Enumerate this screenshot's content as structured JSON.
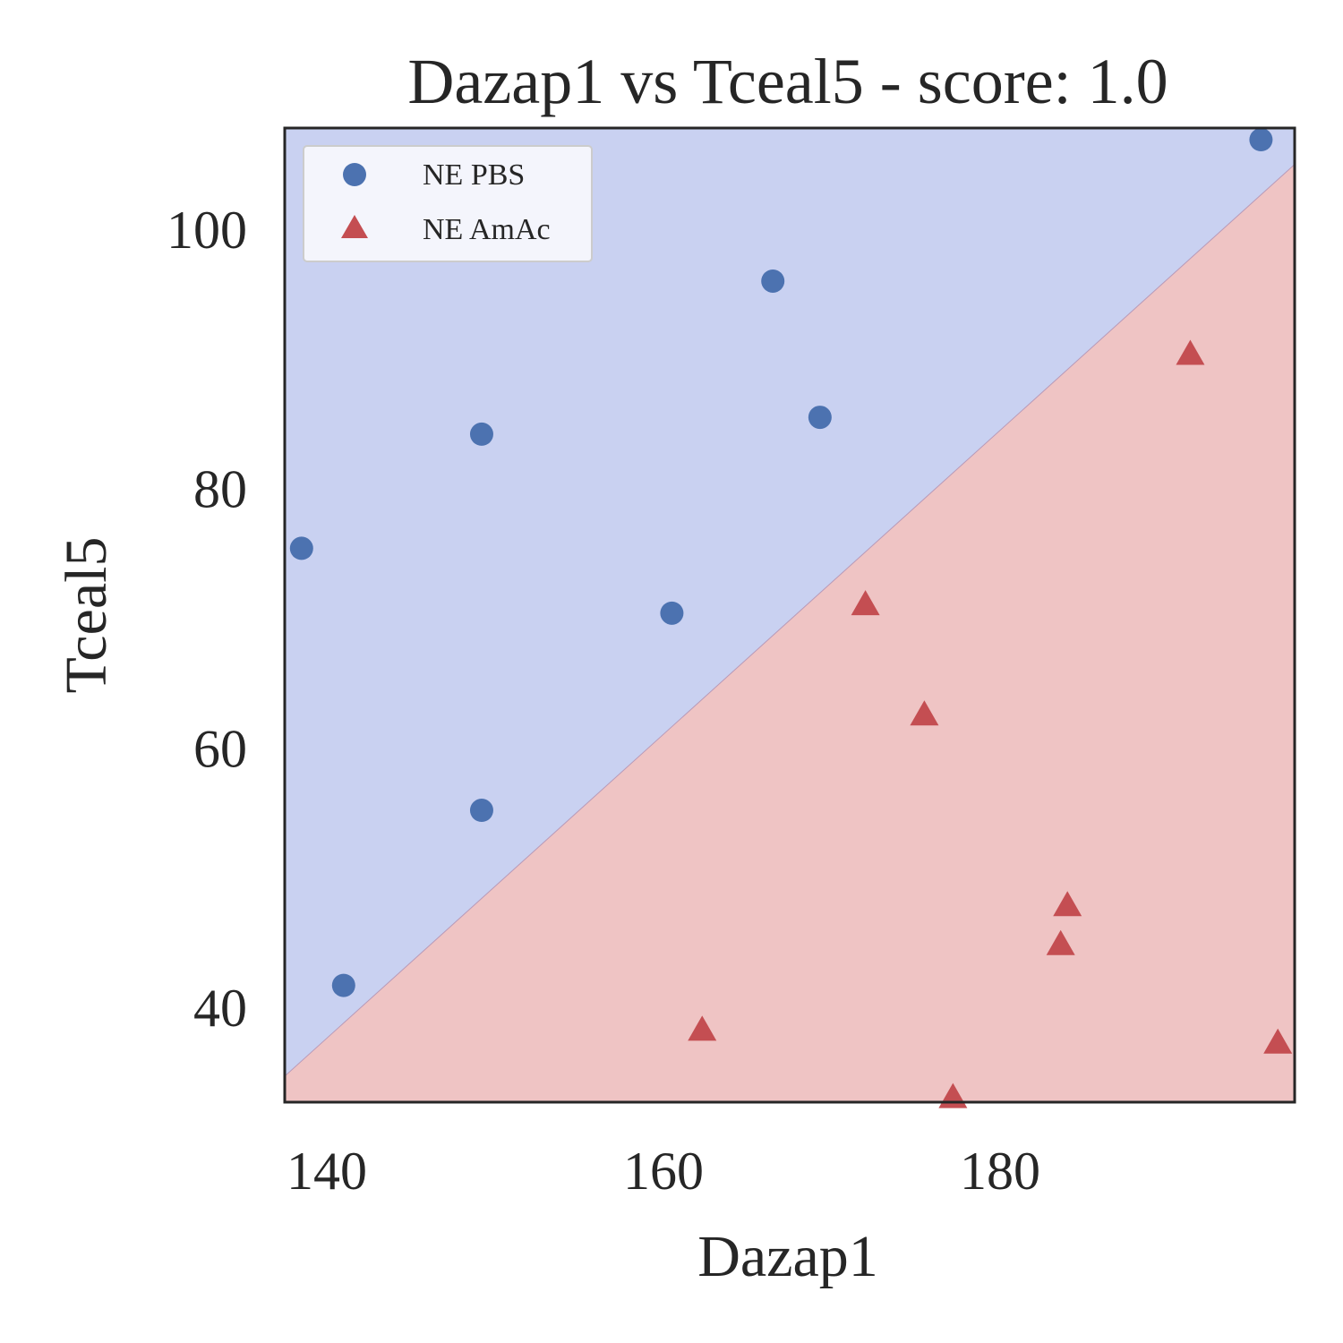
{
  "chart_data": {
    "type": "scatter",
    "title": "Dazap1 vs Tceal5 - score: 1.0",
    "xlabel": "Dazap1",
    "ylabel": "Tceal5",
    "xlim": [
      137.5,
      197.5
    ],
    "ylim": [
      32.7,
      107.8
    ],
    "xticks": [
      140,
      160,
      180
    ],
    "yticks": [
      40,
      60,
      80,
      100
    ],
    "xtick_labels": [
      "140",
      "160",
      "180"
    ],
    "ytick_labels": [
      "40",
      "60",
      "80",
      "100"
    ],
    "grid": false,
    "legend_position": "top-left",
    "decision_boundary": {
      "line": [
        [
          137.5,
          34.7
        ],
        [
          197.5,
          105.0
        ]
      ],
      "regions": [
        {
          "class": "NE PBS",
          "side": "above",
          "color": "#c9d1f1"
        },
        {
          "class": "NE AmAc",
          "side": "below",
          "color": "#efc4c4"
        }
      ]
    },
    "series": [
      {
        "name": "NE PBS",
        "marker": "circle",
        "color": "#4c72b0",
        "points": [
          [
            138.5,
            75.4
          ],
          [
            141.0,
            41.7
          ],
          [
            149.2,
            84.2
          ],
          [
            149.2,
            55.2
          ],
          [
            160.5,
            70.4
          ],
          [
            166.5,
            96.0
          ],
          [
            169.3,
            85.5
          ],
          [
            195.5,
            106.9
          ]
        ]
      },
      {
        "name": "NE AmAc",
        "marker": "triangle",
        "color": "#c44e52",
        "points": [
          [
            162.3,
            38.2
          ],
          [
            172.0,
            71.0
          ],
          [
            175.5,
            62.5
          ],
          [
            177.2,
            33.0
          ],
          [
            183.6,
            44.8
          ],
          [
            184.0,
            47.8
          ],
          [
            191.3,
            90.3
          ],
          [
            196.5,
            37.2
          ]
        ]
      }
    ]
  }
}
